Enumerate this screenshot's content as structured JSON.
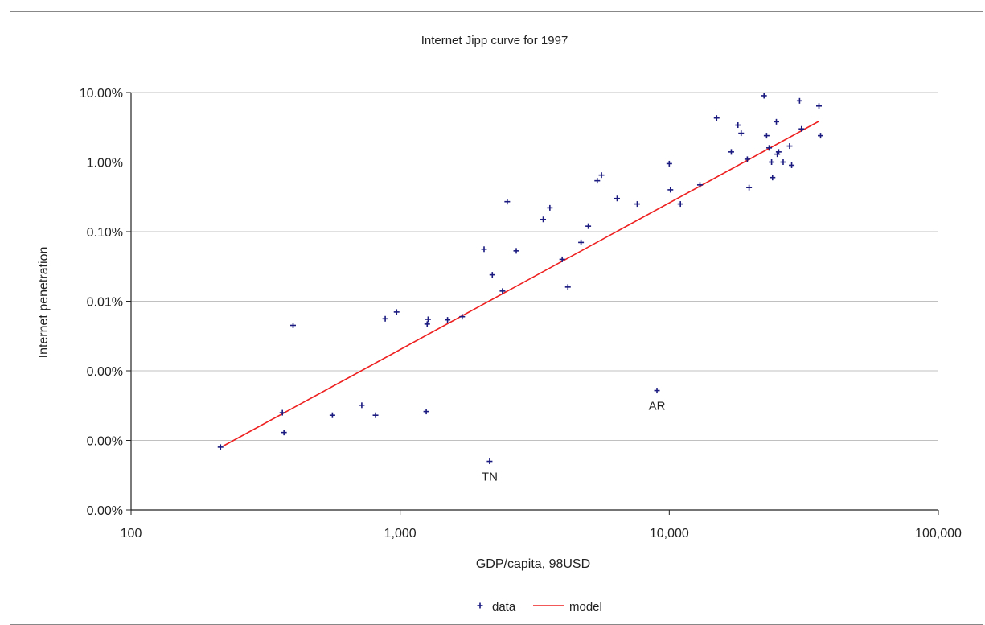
{
  "chart_data": {
    "type": "scatter",
    "title": "Internet Jipp curve for 1997",
    "xlabel": "GDP/capita, 98USD",
    "ylabel": "Internet penetration",
    "x_scale": "log",
    "y_scale": "log",
    "xlim": [
      100,
      100000
    ],
    "ylim": [
      1e-07,
      0.1
    ],
    "x_ticks": [
      100,
      1000,
      10000,
      100000
    ],
    "x_tick_labels": [
      "100",
      "1,000",
      "10,000",
      "100,000"
    ],
    "y_ticks": [
      1e-07,
      1e-06,
      1e-05,
      0.0001,
      0.001,
      0.01,
      0.1
    ],
    "y_tick_labels": [
      "0.00%",
      "0.00%",
      "0.00%",
      "0.01%",
      "0.10%",
      "1.00%",
      "10.00%"
    ],
    "grid": "horizontal",
    "legend": "bottom",
    "colors": {
      "data": "#1a1a80",
      "model": "#ee2020",
      "grid": "#c0c0c0"
    },
    "series": [
      {
        "name": "data",
        "kind": "scatter",
        "points": [
          [
            215,
            8e-07
          ],
          [
            370,
            1.3e-06
          ],
          [
            365,
            2.5e-06
          ],
          [
            400,
            4.5e-05
          ],
          [
            560,
            2.3e-06
          ],
          [
            720,
            3.2e-06
          ],
          [
            810,
            2.3e-06
          ],
          [
            880,
            5.6e-05
          ],
          [
            970,
            7e-05
          ],
          [
            1250,
            2.6e-06
          ],
          [
            1260,
            4.7e-05
          ],
          [
            1270,
            5.5e-05
          ],
          [
            1500,
            5.4e-05
          ],
          [
            1700,
            6e-05
          ],
          [
            2050,
            0.00056
          ],
          [
            2150,
            5e-07
          ],
          [
            2200,
            0.00024
          ],
          [
            2400,
            0.00014
          ],
          [
            2500,
            0.0027
          ],
          [
            2700,
            0.00053
          ],
          [
            3400,
            0.0015
          ],
          [
            3600,
            0.0022
          ],
          [
            4000,
            0.0004
          ],
          [
            4200,
            0.00016
          ],
          [
            4700,
            0.0007
          ],
          [
            5000,
            0.0012
          ],
          [
            5400,
            0.0054
          ],
          [
            5600,
            0.0065
          ],
          [
            6400,
            0.003
          ],
          [
            7600,
            0.0025
          ],
          [
            9000,
            5.2e-06
          ],
          [
            10000,
            0.0095
          ],
          [
            10100,
            0.004
          ],
          [
            11000,
            0.0025
          ],
          [
            13000,
            0.0047
          ],
          [
            15000,
            0.043
          ],
          [
            17000,
            0.014
          ],
          [
            18000,
            0.034
          ],
          [
            18500,
            0.026
          ],
          [
            19500,
            0.011
          ],
          [
            19800,
            0.0043
          ],
          [
            22500,
            0.09
          ],
          [
            23000,
            0.024
          ],
          [
            23500,
            0.016
          ],
          [
            24000,
            0.01
          ],
          [
            24200,
            0.006
          ],
          [
            25000,
            0.038
          ],
          [
            25200,
            0.013
          ],
          [
            25500,
            0.014
          ],
          [
            26500,
            0.01
          ],
          [
            28000,
            0.017
          ],
          [
            28500,
            0.009
          ],
          [
            30500,
            0.076
          ],
          [
            31000,
            0.03
          ],
          [
            36000,
            0.064
          ],
          [
            36500,
            0.024
          ]
        ]
      },
      {
        "name": "model",
        "kind": "line",
        "points": [
          [
            220,
            8.3e-07
          ],
          [
            36000,
            0.0386
          ]
        ]
      }
    ],
    "annotations": [
      {
        "text": "AR",
        "x": 9000,
        "y": 5.2e-06
      },
      {
        "text": "TN",
        "x": 2150,
        "y": 5e-07
      }
    ]
  }
}
